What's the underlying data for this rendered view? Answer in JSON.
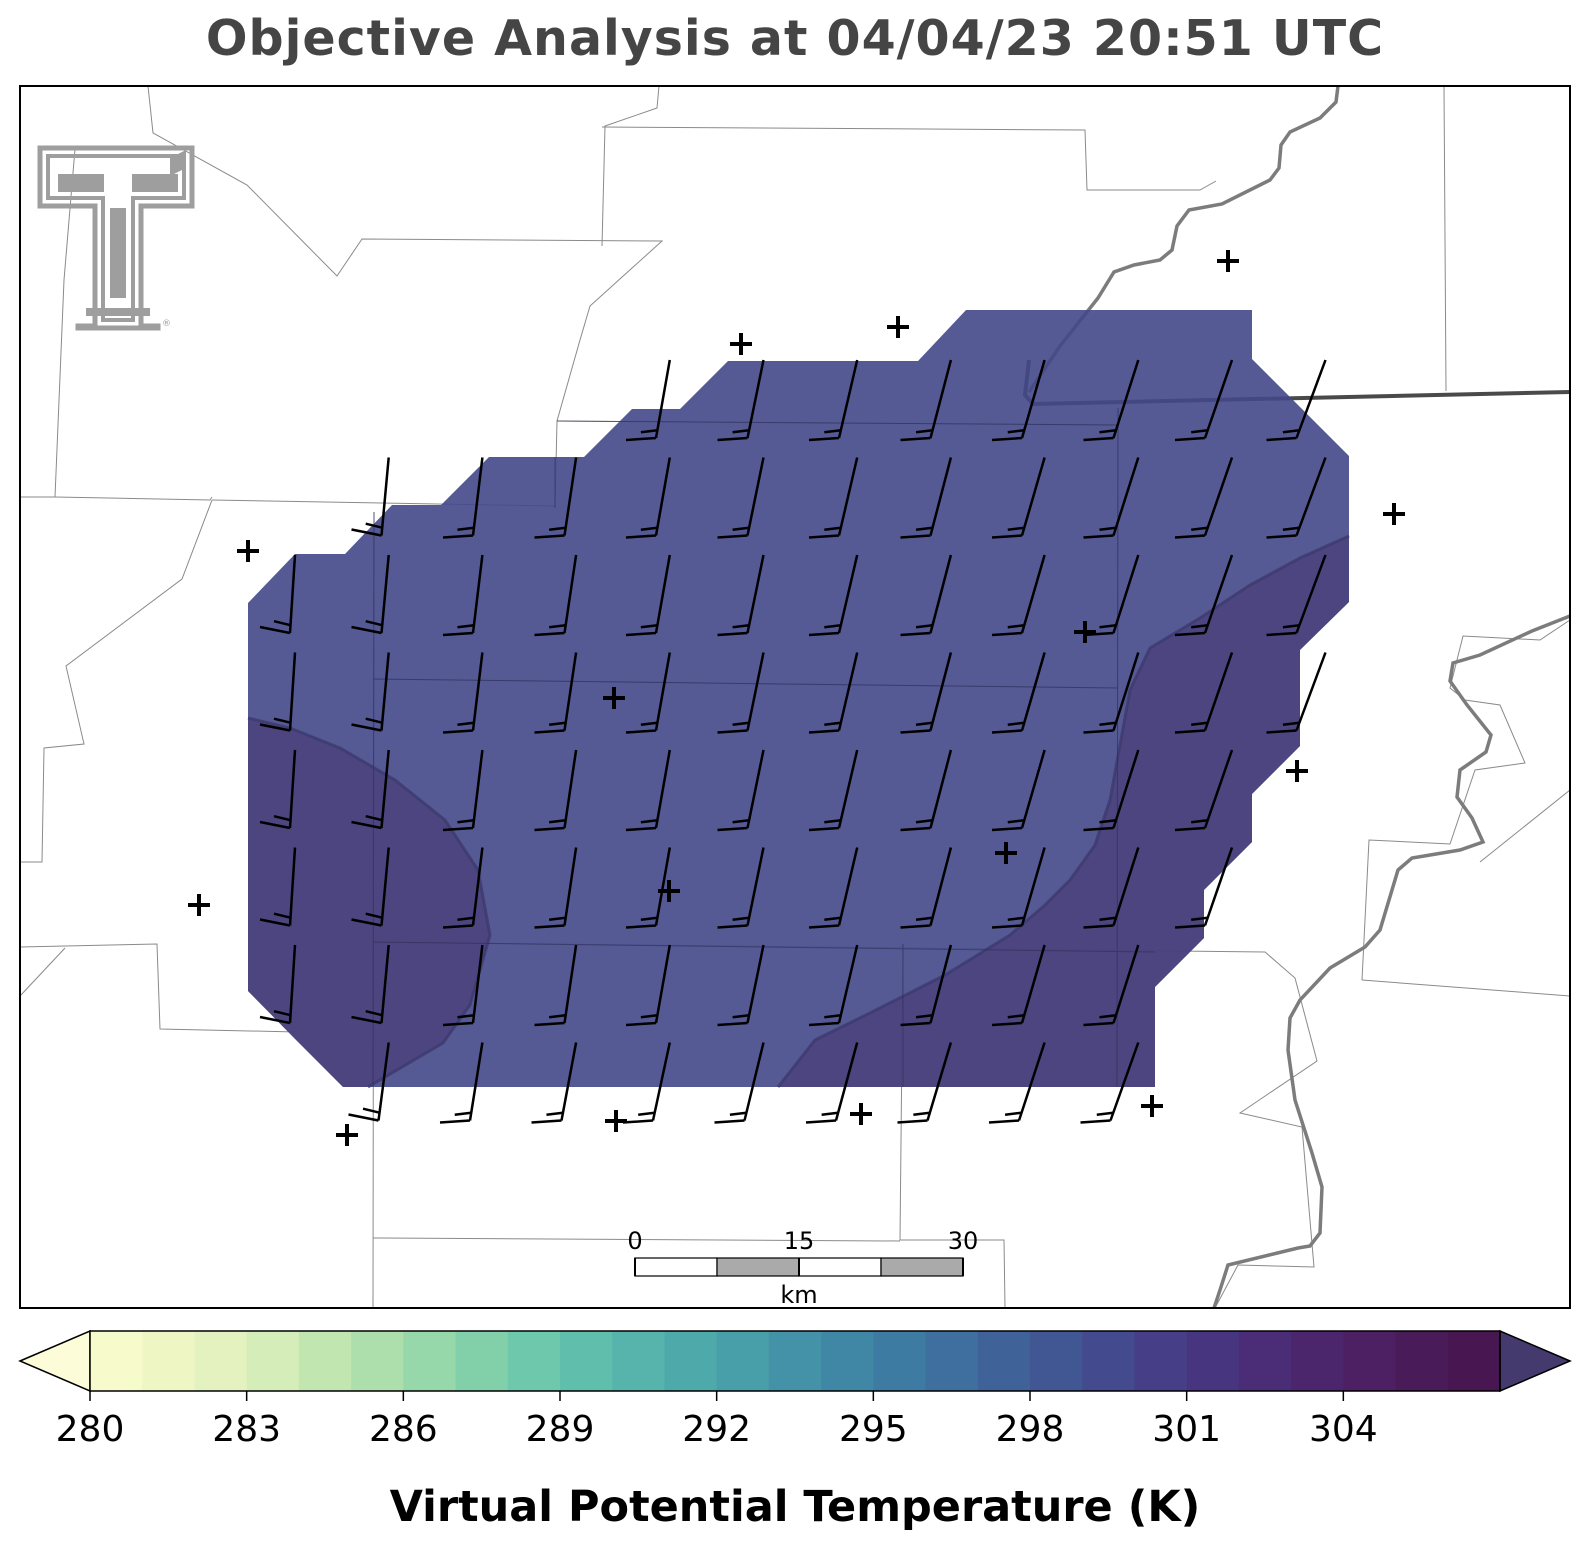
{
  "title": "Objective Analysis at 04/04/23 20:51 UTC",
  "colorbar": {
    "label": "Virtual Potential Temperature (K)",
    "ticks": [
      "280",
      "283",
      "286",
      "289",
      "292",
      "295",
      "298",
      "301",
      "304"
    ],
    "min": 280,
    "max": 307,
    "step": 1,
    "extend": "both",
    "colors": [
      "#f7fbcc",
      "#eef7c4",
      "#e3f2bf",
      "#d5edb8",
      "#c2e6b0",
      "#acdfac",
      "#96d8aa",
      "#81d0aa",
      "#6ec8ab",
      "#60bfac",
      "#56b4ac",
      "#4ea9ab",
      "#489ea9",
      "#4492a7",
      "#4087a5",
      "#3e7ba2",
      "#3e6f9e",
      "#3f6399",
      "#415794",
      "#434b8e",
      "#463f87",
      "#48357f",
      "#4a2d76",
      "#4b266c",
      "#4c2063",
      "#4a1b59",
      "#481650"
    ],
    "low_extend_color": "#fcfdd8",
    "high_extend_color": "#453a6e"
  },
  "scale_bar": {
    "labels": [
      "0",
      "15",
      "30"
    ],
    "unit": "km"
  },
  "field": {
    "fill_color": "#42488a",
    "fill_opacity": 0.9,
    "warm_region_color": "#4a3f78"
  },
  "map": {
    "boundary_color": "#808080",
    "thick_boundary_color": "#2a2a2a",
    "river_color": "#7a7a7a"
  },
  "logo": {
    "name": "texas-tech-double-t-logo",
    "color": "#9e9e9e"
  },
  "wind": {
    "units": "kt",
    "grid_columns": 12,
    "grid_rows": 8
  }
}
